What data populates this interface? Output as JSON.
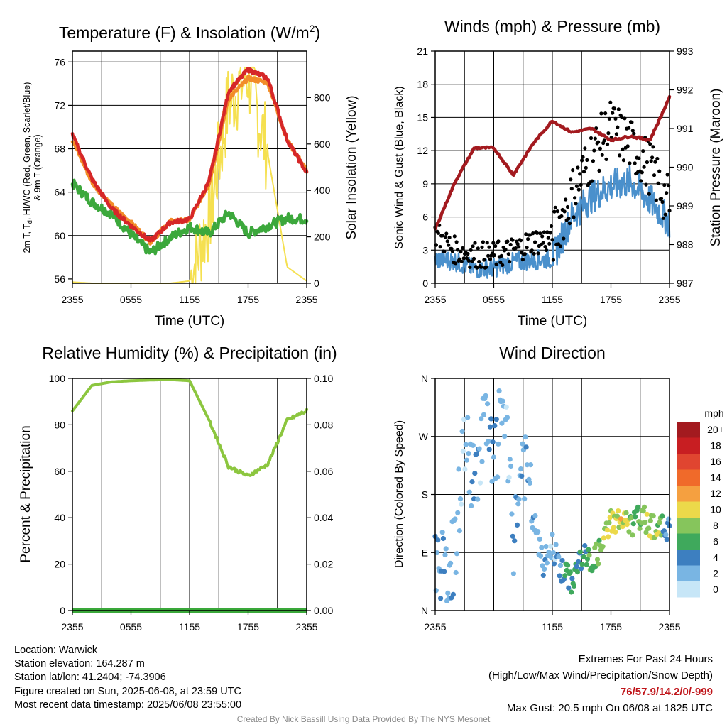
{
  "chart_data": [
    {
      "type": "line",
      "title": "Temperature (F) & Insolation (W/m",
      "title_sup": "2",
      "title_end": ")",
      "xlabel": "Time (UTC)",
      "ylabel_left_1": "2m T, T",
      "ylabel_left_sub": "d",
      "ylabel_left_2": ", HI/WC (Red, Green, Scarlet/Blue)",
      "ylabel_left_line2": "& 9m T (Orange)",
      "ylabel_right": "Solar Insolation (Yellow)",
      "x_ticks": [
        "2355",
        "0555",
        "1155",
        "1755",
        "2355"
      ],
      "x": [
        "2355",
        "0155",
        "0355",
        "0555",
        "0755",
        "0955",
        "1155",
        "1355",
        "1555",
        "1755",
        "1955",
        "2155",
        "2355"
      ],
      "y_ticks_left": [
        "56",
        "60",
        "64",
        "68",
        "72",
        "76"
      ],
      "y_ticks_right": [
        "0",
        "200",
        "400",
        "600",
        "800"
      ],
      "ylim_left": [
        55.6,
        77
      ],
      "ylim_right": [
        0,
        1000
      ],
      "series": [
        {
          "name": "2m T",
          "color": "#d62728",
          "axis": "left",
          "values": [
            69.3,
            65.2,
            62.5,
            60.9,
            59.5,
            61.2,
            61.5,
            65.0,
            73.3,
            75.3,
            74.5,
            68.8,
            65.8
          ]
        },
        {
          "name": "9m T",
          "color": "#f28c28",
          "axis": "left",
          "values": [
            68.8,
            64.9,
            62.8,
            61.2,
            59.4,
            61.3,
            61.4,
            64.8,
            72.6,
            74.5,
            74.1,
            68.8,
            66.0
          ]
        },
        {
          "name": "Td",
          "color": "#3ca83c",
          "axis": "left",
          "values": [
            64.8,
            63.1,
            62.0,
            60.1,
            58.4,
            59.8,
            60.8,
            60.2,
            62.1,
            60.2,
            60.9,
            61.6,
            61.5
          ]
        },
        {
          "name": "Solar Insolation",
          "color": "#f5e050",
          "axis": "right",
          "values": [
            5,
            0,
            0,
            0,
            0,
            0,
            10,
            280,
            780,
            900,
            560,
            70,
            10
          ]
        }
      ]
    },
    {
      "type": "line",
      "title": "Winds (mph) & Pressure (mb)",
      "xlabel": "Time (UTC)",
      "ylabel_left": "Sonic Wind & Gust (Blue, Black)",
      "ylabel_right": "Station Pressure (Maroon)",
      "x_ticks": [
        "2355",
        "0555",
        "1155",
        "1755",
        "2355"
      ],
      "x": [
        "2355",
        "0155",
        "0355",
        "0555",
        "0755",
        "0955",
        "1155",
        "1355",
        "1555",
        "1755",
        "1955",
        "2155",
        "2355"
      ],
      "y_ticks_left": [
        "0",
        "3",
        "6",
        "9",
        "12",
        "15",
        "18",
        "21"
      ],
      "y_ticks_right": [
        "987",
        "988",
        "989",
        "990",
        "991",
        "992",
        "993"
      ],
      "ylim_left": [
        0,
        21
      ],
      "ylim_right": [
        987,
        993
      ],
      "series": [
        {
          "name": "Sonic Wind",
          "color": "#4a90cc",
          "axis": "left",
          "values": [
            2.2,
            2.0,
            1.3,
            1.4,
            1.9,
            2.1,
            2.2,
            6.0,
            7.8,
            8.8,
            9.2,
            7.5,
            5.5
          ]
        },
        {
          "name": "Gust",
          "color": "#000000",
          "axis": "left",
          "marker": "dot",
          "values": [
            4.5,
            3.0,
            2.6,
            2.5,
            3.0,
            3.8,
            4.0,
            8.0,
            11.5,
            14.2,
            12.5,
            10.5,
            7.0
          ]
        },
        {
          "name": "Station Pressure",
          "color": "#a31a1f",
          "axis": "right",
          "values": [
            988.4,
            989.6,
            990.5,
            990.5,
            989.8,
            990.6,
            991.2,
            990.9,
            991.0,
            990.7,
            990.8,
            990.7,
            991.8
          ]
        }
      ]
    },
    {
      "type": "line",
      "title": "Relative Humidity (%) & Precipitation (in)",
      "ylabel_left": "Percent & Precipitation",
      "x_ticks": [
        "2355",
        "0555",
        "1155",
        "1755",
        "2355"
      ],
      "x": [
        "2355",
        "0155",
        "0355",
        "0555",
        "0755",
        "0955",
        "1155",
        "1355",
        "1555",
        "1755",
        "1955",
        "2155",
        "2355"
      ],
      "y_ticks_left": [
        "0",
        "20",
        "40",
        "60",
        "80",
        "100"
      ],
      "y_ticks_right": [
        "0.00",
        "0.02",
        "0.04",
        "0.06",
        "0.08",
        "0.10"
      ],
      "ylim_left": [
        0,
        100
      ],
      "ylim_right": [
        0,
        0.1
      ],
      "series": [
        {
          "name": "Relative Humidity",
          "color": "#8cc63f",
          "axis": "left",
          "values": [
            86,
            97,
            98.5,
            99,
            99.3,
            99.5,
            99,
            82,
            62,
            58,
            63,
            82,
            86
          ]
        },
        {
          "name": "Precipitation",
          "color": "#3aa83a",
          "axis": "right",
          "values": [
            0,
            0,
            0,
            0,
            0,
            0,
            0,
            0,
            0,
            0,
            0,
            0,
            0
          ]
        }
      ]
    },
    {
      "type": "scatter",
      "title": "Wind Direction",
      "ylabel_left": "Direction (Colored By Speed)",
      "x_ticks": [
        "2355",
        "1155",
        "1755",
        "2355"
      ],
      "y_ticks_left": [
        "N",
        "E",
        "S",
        "W",
        "N"
      ],
      "legend_title": "mph",
      "legend_labels": [
        "20+",
        "18",
        "16",
        "14",
        "12",
        "10",
        "8",
        "6",
        "4",
        "2",
        "0"
      ],
      "legend_colors": [
        "#a31a1f",
        "#c81e22",
        "#e04530",
        "#f06a2a",
        "#f5a040",
        "#ecd94a",
        "#86c55c",
        "#3fa95c",
        "#3d7fc0",
        "#79b5e3",
        "#c7e6f7"
      ],
      "x": [
        0.5,
        1,
        2,
        3,
        4,
        5,
        6,
        7,
        8,
        9,
        10,
        11,
        12,
        13,
        14,
        15,
        16,
        17,
        18,
        19,
        20,
        21,
        22,
        23,
        23.5
      ],
      "direction_deg": [
        80,
        45,
        90,
        270,
        190,
        300,
        220,
        330,
        110,
        240,
        150,
        70,
        100,
        60,
        45,
        85,
        75,
        95,
        140,
        140,
        130,
        145,
        135,
        125,
        130
      ],
      "speed_mph": [
        3,
        3,
        2,
        1,
        3,
        2,
        4,
        1,
        3,
        2,
        3,
        2,
        1,
        5,
        6,
        4,
        7,
        8,
        9,
        10,
        8,
        7,
        9,
        8,
        4
      ]
    }
  ],
  "footer": {
    "location": "Location: Warwick",
    "elevation": "Station elevation: 164.287 m",
    "latlon": "Station lat/lon: 41.2404; -74.3906",
    "created": "Figure created on Sun, 2025-06-08, at 23:59 UTC",
    "recent": "Most recent data timestamp: 2025/06/08 23:55:00",
    "extremes_title": "Extremes For Past 24 Hours",
    "extremes_subtitle": "(High/Low/Max Wind/Precipitation/Snow Depth)",
    "extremes_values": "76/57.9/14.2/0/-999",
    "max_gust": "Max Gust: 20.5 mph On 06/08 at 1825 UTC",
    "credit": "Created By Nick Bassill Using Data Provided By The NYS Mesonet"
  }
}
